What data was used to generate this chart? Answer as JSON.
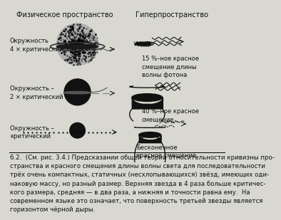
{
  "bg_color": "#d8d8d0",
  "title_left": "Физическое пространство",
  "title_right": "Гиперпространство",
  "title_fontsize": 7.0,
  "labels_left": [
    "Окружность\n4 × критический",
    "Окружность –\n2 × критический",
    "Окружность –\nкритический"
  ],
  "labels_right": [
    "15 %–ное красное\nсмещение длины\nволны фотона",
    "40 %–ное красное\nсмещение",
    "Бесконечное\nкрасное смещение"
  ],
  "caption": "6.2.  (См. рис. 3.4.) Предсказании общей теории относительности кривизны про-\nстранства и красного смещения длины волны света для последовательности\nтрёх очень компактных, статичных (несхлопывающихся) звёзд, имеющих оди-\nнаковую массу, но разный размер. Верхняя звезда в 4 раза больше критичес-\nкого размера, средняя — в два раза, а нижняя и точности равна ему.  На\nсовременном языке это означает, что поверхность третьей звезды является\nгоризонтом чёрной дыры.",
  "caption_fontsize": 6.2,
  "font_color": "#111111"
}
